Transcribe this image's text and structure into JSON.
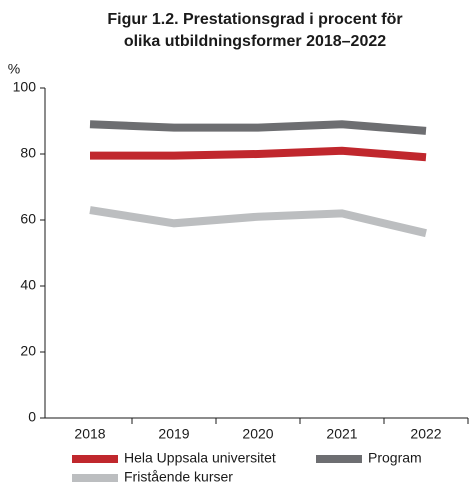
{
  "chart_data": {
    "type": "line",
    "title": [
      "Figur 1.2. Prestationsgrad i procent för",
      "olika utbildningsformer 2018–2022"
    ],
    "y_label": "%",
    "categories": [
      "2018",
      "2019",
      "2020",
      "2021",
      "2022"
    ],
    "series": [
      {
        "name": "Hela Uppsala universitet",
        "color": "#c0272d",
        "values": [
          79.5,
          79.5,
          80,
          81,
          79
        ]
      },
      {
        "name": "Program",
        "color": "#6d6e71",
        "values": [
          89,
          88,
          88,
          89,
          87
        ]
      },
      {
        "name": "Fristående kurser",
        "color": "#bcbec0",
        "values": [
          63,
          59,
          61,
          62,
          56
        ]
      }
    ],
    "ylim": [
      0,
      100
    ],
    "yticks": [
      0,
      20,
      40,
      60,
      80,
      100
    ]
  }
}
